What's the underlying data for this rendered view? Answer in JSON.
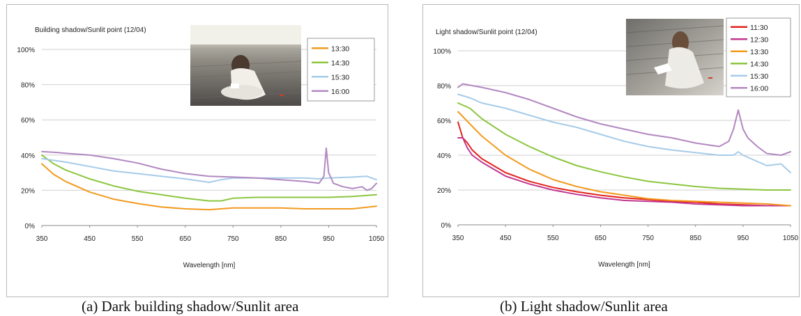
{
  "captions": {
    "a": "(a)  Dark building shadow/Sunlit area",
    "b": "(b) Light shadow/Sunlit area"
  },
  "chart_data": [
    {
      "type": "line",
      "title": "Building shadow/Sunlit point (12/04)",
      "xlabel": "Wavelength [nm]",
      "ylabel": "",
      "xlim": [
        350,
        1050
      ],
      "ylim": [
        0,
        100
      ],
      "x_ticks": [
        "350",
        "450",
        "550",
        "650",
        "750",
        "850",
        "950",
        "1050"
      ],
      "y_ticks": [
        "0%",
        "20%",
        "40%",
        "60%",
        "80%",
        "100%"
      ],
      "grid": "horizontal",
      "legend": "top-right",
      "series": [
        {
          "name": "13:30",
          "color": "#f39a1e",
          "points": [
            [
              350,
              35
            ],
            [
              375,
              29
            ],
            [
              400,
              25
            ],
            [
              450,
              19
            ],
            [
              500,
              15
            ],
            [
              550,
              12.5
            ],
            [
              600,
              10.5
            ],
            [
              650,
              9.5
            ],
            [
              700,
              9
            ],
            [
              750,
              10
            ],
            [
              800,
              10
            ],
            [
              850,
              10
            ],
            [
              900,
              9.5
            ],
            [
              950,
              9.5
            ],
            [
              1000,
              9.5
            ],
            [
              1050,
              11
            ]
          ]
        },
        {
          "name": "14:30",
          "color": "#8cc63f",
          "points": [
            [
              350,
              40
            ],
            [
              375,
              35
            ],
            [
              400,
              31.5
            ],
            [
              450,
              26.5
            ],
            [
              500,
              22.5
            ],
            [
              550,
              19.5
            ],
            [
              600,
              17.5
            ],
            [
              650,
              15.5
            ],
            [
              700,
              14
            ],
            [
              725,
              14
            ],
            [
              750,
              15.5
            ],
            [
              800,
              16
            ],
            [
              850,
              16
            ],
            [
              900,
              16
            ],
            [
              950,
              16
            ],
            [
              1000,
              16.5
            ],
            [
              1050,
              17.5
            ]
          ]
        },
        {
          "name": "15:30",
          "color": "#a6cbe8",
          "points": [
            [
              350,
              38
            ],
            [
              400,
              36
            ],
            [
              450,
              33.5
            ],
            [
              500,
              31
            ],
            [
              550,
              29.5
            ],
            [
              600,
              28
            ],
            [
              650,
              26.5
            ],
            [
              700,
              24.5
            ],
            [
              725,
              26
            ],
            [
              750,
              27
            ],
            [
              800,
              27
            ],
            [
              850,
              27
            ],
            [
              900,
              27
            ],
            [
              930,
              26.5
            ],
            [
              950,
              27
            ],
            [
              1000,
              27.5
            ],
            [
              1030,
              28
            ],
            [
              1050,
              26
            ]
          ]
        },
        {
          "name": "16:00",
          "color": "#b288c0",
          "points": [
            [
              350,
              42
            ],
            [
              380,
              41.5
            ],
            [
              400,
              41
            ],
            [
              450,
              40
            ],
            [
              500,
              38
            ],
            [
              550,
              35.5
            ],
            [
              600,
              32
            ],
            [
              650,
              29.5
            ],
            [
              700,
              28
            ],
            [
              750,
              27.5
            ],
            [
              800,
              27
            ],
            [
              850,
              26
            ],
            [
              900,
              25
            ],
            [
              930,
              24
            ],
            [
              940,
              28
            ],
            [
              945,
              44
            ],
            [
              950,
              30
            ],
            [
              960,
              24
            ],
            [
              980,
              22
            ],
            [
              1000,
              21
            ],
            [
              1020,
              22
            ],
            [
              1030,
              20
            ],
            [
              1040,
              21
            ],
            [
              1050,
              24
            ]
          ]
        }
      ]
    },
    {
      "type": "line",
      "title": "Light shadow/Sunlit point (12/04)",
      "xlabel": "Wavelength [nm]",
      "ylabel": "",
      "xlim": [
        350,
        1050
      ],
      "ylim": [
        0,
        100
      ],
      "x_ticks": [
        "350",
        "450",
        "550",
        "650",
        "750",
        "850",
        "950",
        "1050"
      ],
      "y_ticks": [
        "0%",
        "20%",
        "40%",
        "60%",
        "80%",
        "100%"
      ],
      "grid": "horizontal",
      "legend": "top-right",
      "series": [
        {
          "name": "11:30",
          "color": "#e3231c",
          "points": [
            [
              350,
              59
            ],
            [
              360,
              50
            ],
            [
              370,
              47
            ],
            [
              380,
              43
            ],
            [
              400,
              38
            ],
            [
              450,
              30
            ],
            [
              500,
              25
            ],
            [
              550,
              21.5
            ],
            [
              600,
              19
            ],
            [
              650,
              17
            ],
            [
              700,
              15.5
            ],
            [
              750,
              14.5
            ],
            [
              800,
              13.5
            ],
            [
              850,
              13
            ],
            [
              900,
              12
            ],
            [
              950,
              11.5
            ],
            [
              1000,
              11
            ],
            [
              1050,
              11
            ]
          ]
        },
        {
          "name": "12:30",
          "color": "#c2358f",
          "points": [
            [
              350,
              50
            ],
            [
              360,
              50
            ],
            [
              370,
              44
            ],
            [
              380,
              40
            ],
            [
              400,
              36
            ],
            [
              450,
              28
            ],
            [
              500,
              23.5
            ],
            [
              550,
              20
            ],
            [
              600,
              17.5
            ],
            [
              650,
              15.5
            ],
            [
              700,
              14
            ],
            [
              750,
              13.5
            ],
            [
              800,
              13
            ],
            [
              850,
              12
            ],
            [
              900,
              11.5
            ],
            [
              950,
              11
            ],
            [
              1000,
              11
            ],
            [
              1050,
              11
            ]
          ]
        },
        {
          "name": "13:30",
          "color": "#f39a1e",
          "points": [
            [
              350,
              65
            ],
            [
              375,
              58
            ],
            [
              400,
              51
            ],
            [
              450,
              40
            ],
            [
              500,
              32
            ],
            [
              550,
              26
            ],
            [
              600,
              22
            ],
            [
              650,
              19
            ],
            [
              700,
              17
            ],
            [
              750,
              15
            ],
            [
              800,
              14
            ],
            [
              850,
              13.5
            ],
            [
              900,
              13
            ],
            [
              950,
              12.5
            ],
            [
              1000,
              12
            ],
            [
              1050,
              11
            ]
          ]
        },
        {
          "name": "14:30",
          "color": "#8cc63f",
          "points": [
            [
              350,
              70
            ],
            [
              375,
              67
            ],
            [
              400,
              61
            ],
            [
              450,
              52
            ],
            [
              500,
              45
            ],
            [
              550,
              39
            ],
            [
              600,
              34
            ],
            [
              650,
              30.5
            ],
            [
              700,
              27.5
            ],
            [
              750,
              25
            ],
            [
              800,
              23.5
            ],
            [
              850,
              22
            ],
            [
              900,
              21
            ],
            [
              950,
              20.5
            ],
            [
              1000,
              20
            ],
            [
              1050,
              20
            ]
          ]
        },
        {
          "name": "15:30",
          "color": "#a6cbe8",
          "points": [
            [
              350,
              75
            ],
            [
              375,
              73
            ],
            [
              400,
              70
            ],
            [
              450,
              67
            ],
            [
              500,
              63
            ],
            [
              550,
              59
            ],
            [
              600,
              56
            ],
            [
              650,
              52
            ],
            [
              700,
              48
            ],
            [
              750,
              45
            ],
            [
              800,
              43
            ],
            [
              850,
              41.5
            ],
            [
              900,
              40
            ],
            [
              930,
              40
            ],
            [
              940,
              42
            ],
            [
              950,
              40
            ],
            [
              1000,
              34
            ],
            [
              1030,
              35
            ],
            [
              1050,
              30
            ]
          ]
        },
        {
          "name": "16:00",
          "color": "#b288c0",
          "points": [
            [
              350,
              79
            ],
            [
              360,
              81
            ],
            [
              400,
              79
            ],
            [
              450,
              76
            ],
            [
              500,
              72
            ],
            [
              550,
              67
            ],
            [
              600,
              62
            ],
            [
              650,
              58
            ],
            [
              700,
              55
            ],
            [
              750,
              52
            ],
            [
              800,
              50
            ],
            [
              850,
              47
            ],
            [
              900,
              45
            ],
            [
              920,
              48
            ],
            [
              930,
              55
            ],
            [
              940,
              66
            ],
            [
              950,
              55
            ],
            [
              960,
              50
            ],
            [
              980,
              45
            ],
            [
              1000,
              41
            ],
            [
              1030,
              40
            ],
            [
              1050,
              42
            ]
          ]
        }
      ]
    }
  ]
}
